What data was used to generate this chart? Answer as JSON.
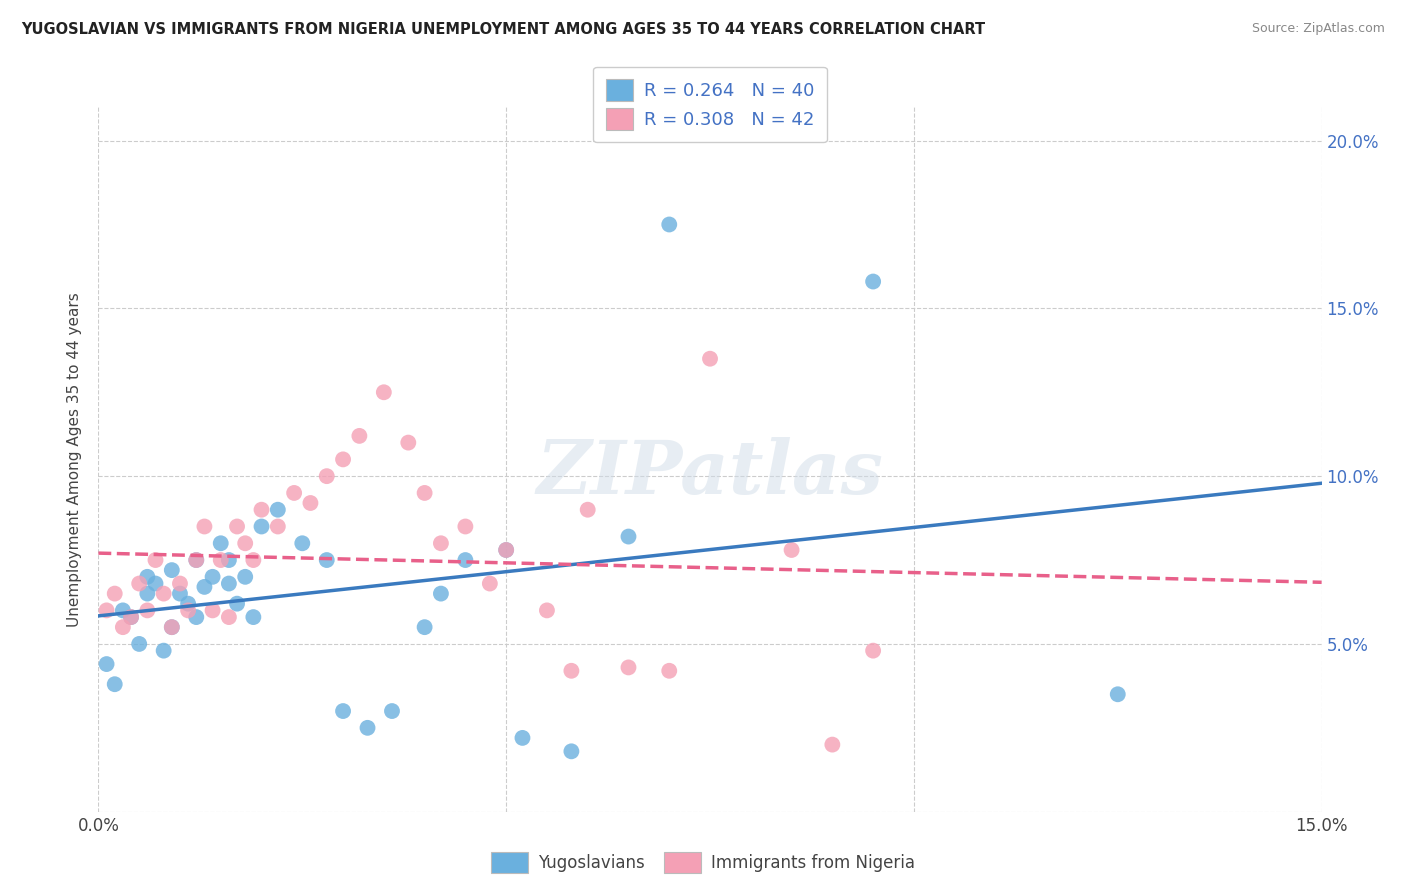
{
  "title": "YUGOSLAVIAN VS IMMIGRANTS FROM NIGERIA UNEMPLOYMENT AMONG AGES 35 TO 44 YEARS CORRELATION CHART",
  "source": "Source: ZipAtlas.com",
  "ylabel": "Unemployment Among Ages 35 to 44 years",
  "xlim": [
    0.0,
    0.15
  ],
  "ylim": [
    0.0,
    0.21
  ],
  "xtick_positions": [
    0.0,
    0.05,
    0.1,
    0.15
  ],
  "xtick_labels": [
    "0.0%",
    "",
    "",
    "15.0%"
  ],
  "ytick_positions": [
    0.0,
    0.05,
    0.1,
    0.15,
    0.2
  ],
  "ytick_labels_right": [
    "",
    "5.0%",
    "10.0%",
    "15.0%",
    "20.0%"
  ],
  "legend_labels": [
    "Yugoslavians",
    "Immigrants from Nigeria"
  ],
  "watermark_text": "ZIPatlas",
  "background_color": "#ffffff",
  "grid_color": "#cccccc",
  "series": [
    {
      "name": "Yugoslavians",
      "color": "#6ab0de",
      "line_color": "#3a7abf",
      "linestyle": "solid",
      "R": 0.264,
      "N": 40,
      "x": [
        0.001,
        0.002,
        0.003,
        0.004,
        0.005,
        0.006,
        0.006,
        0.007,
        0.008,
        0.009,
        0.009,
        0.01,
        0.011,
        0.012,
        0.012,
        0.013,
        0.014,
        0.015,
        0.016,
        0.016,
        0.017,
        0.018,
        0.019,
        0.02,
        0.022,
        0.025,
        0.028,
        0.03,
        0.033,
        0.036,
        0.04,
        0.042,
        0.045,
        0.05,
        0.052,
        0.058,
        0.065,
        0.07,
        0.095,
        0.125
      ],
      "y": [
        0.044,
        0.038,
        0.06,
        0.058,
        0.05,
        0.065,
        0.07,
        0.068,
        0.048,
        0.055,
        0.072,
        0.065,
        0.062,
        0.058,
        0.075,
        0.067,
        0.07,
        0.08,
        0.075,
        0.068,
        0.062,
        0.07,
        0.058,
        0.085,
        0.09,
        0.08,
        0.075,
        0.03,
        0.025,
        0.03,
        0.055,
        0.065,
        0.075,
        0.078,
        0.022,
        0.018,
        0.082,
        0.175,
        0.158,
        0.035
      ]
    },
    {
      "name": "Immigrants from Nigeria",
      "color": "#f4a0b5",
      "line_color": "#e8608a",
      "linestyle": "dashed",
      "R": 0.308,
      "N": 42,
      "x": [
        0.001,
        0.002,
        0.003,
        0.004,
        0.005,
        0.006,
        0.007,
        0.008,
        0.009,
        0.01,
        0.011,
        0.012,
        0.013,
        0.014,
        0.015,
        0.016,
        0.017,
        0.018,
        0.019,
        0.02,
        0.022,
        0.024,
        0.026,
        0.028,
        0.03,
        0.032,
        0.035,
        0.038,
        0.04,
        0.042,
        0.045,
        0.048,
        0.05,
        0.055,
        0.058,
        0.06,
        0.065,
        0.07,
        0.075,
        0.085,
        0.09,
        0.095
      ],
      "y": [
        0.06,
        0.065,
        0.055,
        0.058,
        0.068,
        0.06,
        0.075,
        0.065,
        0.055,
        0.068,
        0.06,
        0.075,
        0.085,
        0.06,
        0.075,
        0.058,
        0.085,
        0.08,
        0.075,
        0.09,
        0.085,
        0.095,
        0.092,
        0.1,
        0.105,
        0.112,
        0.125,
        0.11,
        0.095,
        0.08,
        0.085,
        0.068,
        0.078,
        0.06,
        0.042,
        0.09,
        0.043,
        0.042,
        0.135,
        0.078,
        0.02,
        0.048
      ]
    }
  ]
}
